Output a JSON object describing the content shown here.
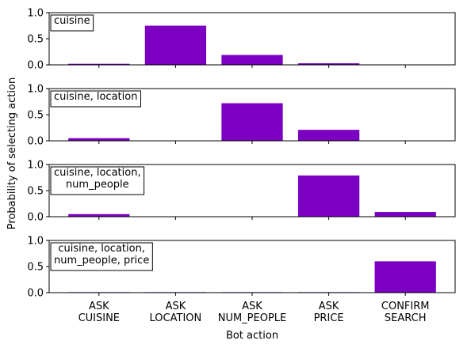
{
  "figure": {
    "ylabel": "Probability of selecting action",
    "xlabel": "Bot action",
    "bar_color": "#7b00c2"
  },
  "chart_data": {
    "type": "bar",
    "categories": [
      [
        "ASK",
        "CUISINE"
      ],
      [
        "ASK",
        "LOCATION"
      ],
      [
        "ASK",
        "NUM_PEOPLE"
      ],
      [
        "ASK",
        "PRICE"
      ],
      [
        "CONFIRM",
        "SEARCH"
      ]
    ],
    "ylim": [
      0,
      1.0
    ],
    "yticks": [
      "0.0",
      "0.5",
      "1.0"
    ],
    "panels": [
      {
        "label": [
          "cuisine"
        ],
        "values": [
          0.02,
          0.75,
          0.19,
          0.03,
          0.0
        ]
      },
      {
        "label": [
          "cuisine, location"
        ],
        "values": [
          0.05,
          0.0,
          0.72,
          0.21,
          0.0
        ]
      },
      {
        "label": [
          "cuisine, location,",
          "num_people"
        ],
        "values": [
          0.05,
          0.0,
          0.0,
          0.79,
          0.09
        ]
      },
      {
        "label": [
          "cuisine, location,",
          "num_people, price"
        ],
        "values": [
          0.01,
          0.01,
          0.01,
          0.01,
          0.6
        ]
      }
    ]
  }
}
